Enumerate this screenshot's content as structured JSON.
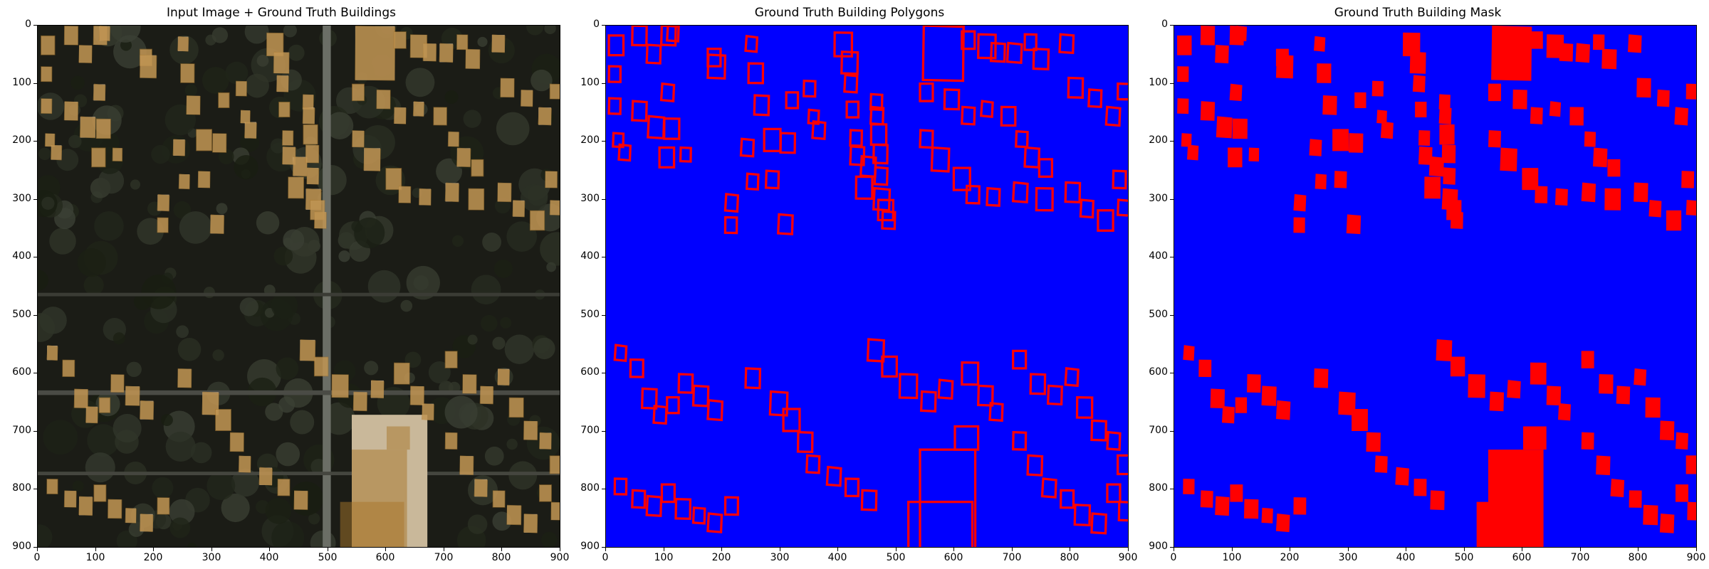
{
  "panels": [
    {
      "title": "Input Image + Ground Truth Buildings"
    },
    {
      "title": "Ground Truth Building Polygons"
    },
    {
      "title": "Ground Truth Building Mask"
    }
  ],
  "axes": {
    "ticks": [
      "0",
      "100",
      "200",
      "300",
      "400",
      "500",
      "600",
      "700",
      "800",
      "900"
    ],
    "xlim": [
      0,
      900
    ],
    "ylim": [
      0,
      900
    ]
  },
  "colors": {
    "background_blue": "#0000ff",
    "building_red": "#ff0000",
    "overlay_orange": "#a8762a",
    "photo_dark": "#1b1c16",
    "road": "#6b6e66"
  },
  "buildings": [
    [
      5,
      17,
      25
    ],
    [
      45,
      0,
      25
    ],
    [
      70,
      33,
      24
    ],
    [
      95,
      100,
      22
    ],
    [
      5,
      70,
      20
    ],
    [
      95,
      0,
      25
    ],
    [
      105,
      0,
      20
    ],
    [
      175,
      40,
      22
    ],
    [
      5,
      125,
      20
    ],
    [
      45,
      130,
      25
    ],
    [
      72,
      156,
      28
    ],
    [
      100,
      160,
      26
    ],
    [
      12,
      185,
      18
    ],
    [
      22,
      205,
      20
    ],
    [
      92,
      210,
      25
    ],
    [
      128,
      210,
      18
    ],
    [
      175,
      50,
      30
    ],
    [
      240,
      18,
      20
    ],
    [
      245,
      65,
      25
    ],
    [
      255,
      120,
      25
    ],
    [
      232,
      195,
      22
    ],
    [
      272,
      178,
      28
    ],
    [
      300,
      185,
      25
    ],
    [
      242,
      255,
      20
    ],
    [
      205,
      290,
      22
    ],
    [
      205,
      330,
      20
    ],
    [
      275,
      250,
      22
    ],
    [
      296,
      325,
      25
    ],
    [
      310,
      115,
      20
    ],
    [
      340,
      95,
      20
    ],
    [
      348,
      145,
      18
    ],
    [
      355,
      165,
      22
    ],
    [
      393,
      12,
      30
    ],
    [
      405,
      45,
      28
    ],
    [
      410,
      85,
      22
    ],
    [
      414,
      131,
      20
    ],
    [
      420,
      180,
      20
    ],
    [
      420,
      208,
      24
    ],
    [
      438,
      225,
      26
    ],
    [
      430,
      260,
      28
    ],
    [
      455,
      118,
      20
    ],
    [
      455,
      140,
      22
    ],
    [
      456,
      170,
      26
    ],
    [
      460,
      205,
      24
    ],
    [
      462,
      244,
      22
    ],
    [
      460,
      280,
      28
    ],
    [
      468,
      300,
      26
    ],
    [
      475,
      320,
      22
    ],
    [
      545,
      0,
      70
    ],
    [
      612,
      10,
      22
    ],
    [
      640,
      15,
      30
    ],
    [
      662,
      30,
      24
    ],
    [
      690,
      30,
      25
    ],
    [
      720,
      15,
      20
    ],
    [
      735,
      40,
      26
    ],
    [
      780,
      15,
      24
    ],
    [
      540,
      100,
      22
    ],
    [
      582,
      110,
      25
    ],
    [
      612,
      140,
      22
    ],
    [
      645,
      130,
      20
    ],
    [
      680,
      140,
      24
    ],
    [
      705,
      182,
      20
    ],
    [
      720,
      210,
      25
    ],
    [
      745,
      230,
      22
    ],
    [
      795,
      90,
      25
    ],
    [
      830,
      110,
      22
    ],
    [
      860,
      140,
      24
    ],
    [
      880,
      100,
      20
    ],
    [
      540,
      180,
      22
    ],
    [
      560,
      210,
      30
    ],
    [
      598,
      245,
      28
    ],
    [
      620,
      276,
      22
    ],
    [
      655,
      280,
      22
    ],
    [
      700,
      270,
      25
    ],
    [
      740,
      280,
      28
    ],
    [
      790,
      270,
      25
    ],
    [
      816,
      300,
      22
    ],
    [
      846,
      318,
      26
    ],
    [
      872,
      250,
      22
    ],
    [
      880,
      300,
      20
    ],
    [
      15,
      550,
      20
    ],
    [
      42,
      575,
      22
    ],
    [
      62,
      625,
      25
    ],
    [
      82,
      655,
      22
    ],
    [
      105,
      640,
      20
    ],
    [
      125,
      600,
      24
    ],
    [
      150,
      620,
      26
    ],
    [
      175,
      645,
      25
    ],
    [
      15,
      780,
      20
    ],
    [
      45,
      800,
      22
    ],
    [
      70,
      810,
      25
    ],
    [
      96,
      790,
      22
    ],
    [
      120,
      815,
      25
    ],
    [
      150,
      830,
      20
    ],
    [
      175,
      840,
      24
    ],
    [
      205,
      812,
      22
    ],
    [
      240,
      590,
      25
    ],
    [
      282,
      630,
      30
    ],
    [
      305,
      660,
      28
    ],
    [
      330,
      700,
      25
    ],
    [
      345,
      740,
      22
    ],
    [
      380,
      760,
      24
    ],
    [
      412,
      780,
      22
    ],
    [
      440,
      800,
      25
    ],
    [
      450,
      540,
      28
    ],
    [
      475,
      570,
      25
    ],
    [
      505,
      600,
      30
    ],
    [
      542,
      630,
      25
    ],
    [
      572,
      610,
      24
    ],
    [
      612,
      580,
      28
    ],
    [
      640,
      620,
      25
    ],
    [
      660,
      650,
      22
    ],
    [
      700,
      560,
      22
    ],
    [
      730,
      600,
      25
    ],
    [
      760,
      620,
      24
    ],
    [
      790,
      590,
      22
    ],
    [
      810,
      640,
      26
    ],
    [
      835,
      680,
      25
    ],
    [
      862,
      700,
      22
    ],
    [
      880,
      740,
      24
    ],
    [
      700,
      700,
      22
    ],
    [
      725,
      740,
      25
    ],
    [
      750,
      780,
      24
    ],
    [
      782,
      800,
      22
    ],
    [
      806,
      825,
      26
    ],
    [
      835,
      840,
      25
    ],
    [
      862,
      790,
      22
    ],
    [
      882,
      820,
      24
    ]
  ],
  "complex": [
    [
      540,
      730,
      95,
      170
    ],
    [
      520,
      820,
      110,
      80
    ],
    [
      600,
      690,
      40,
      40
    ]
  ]
}
